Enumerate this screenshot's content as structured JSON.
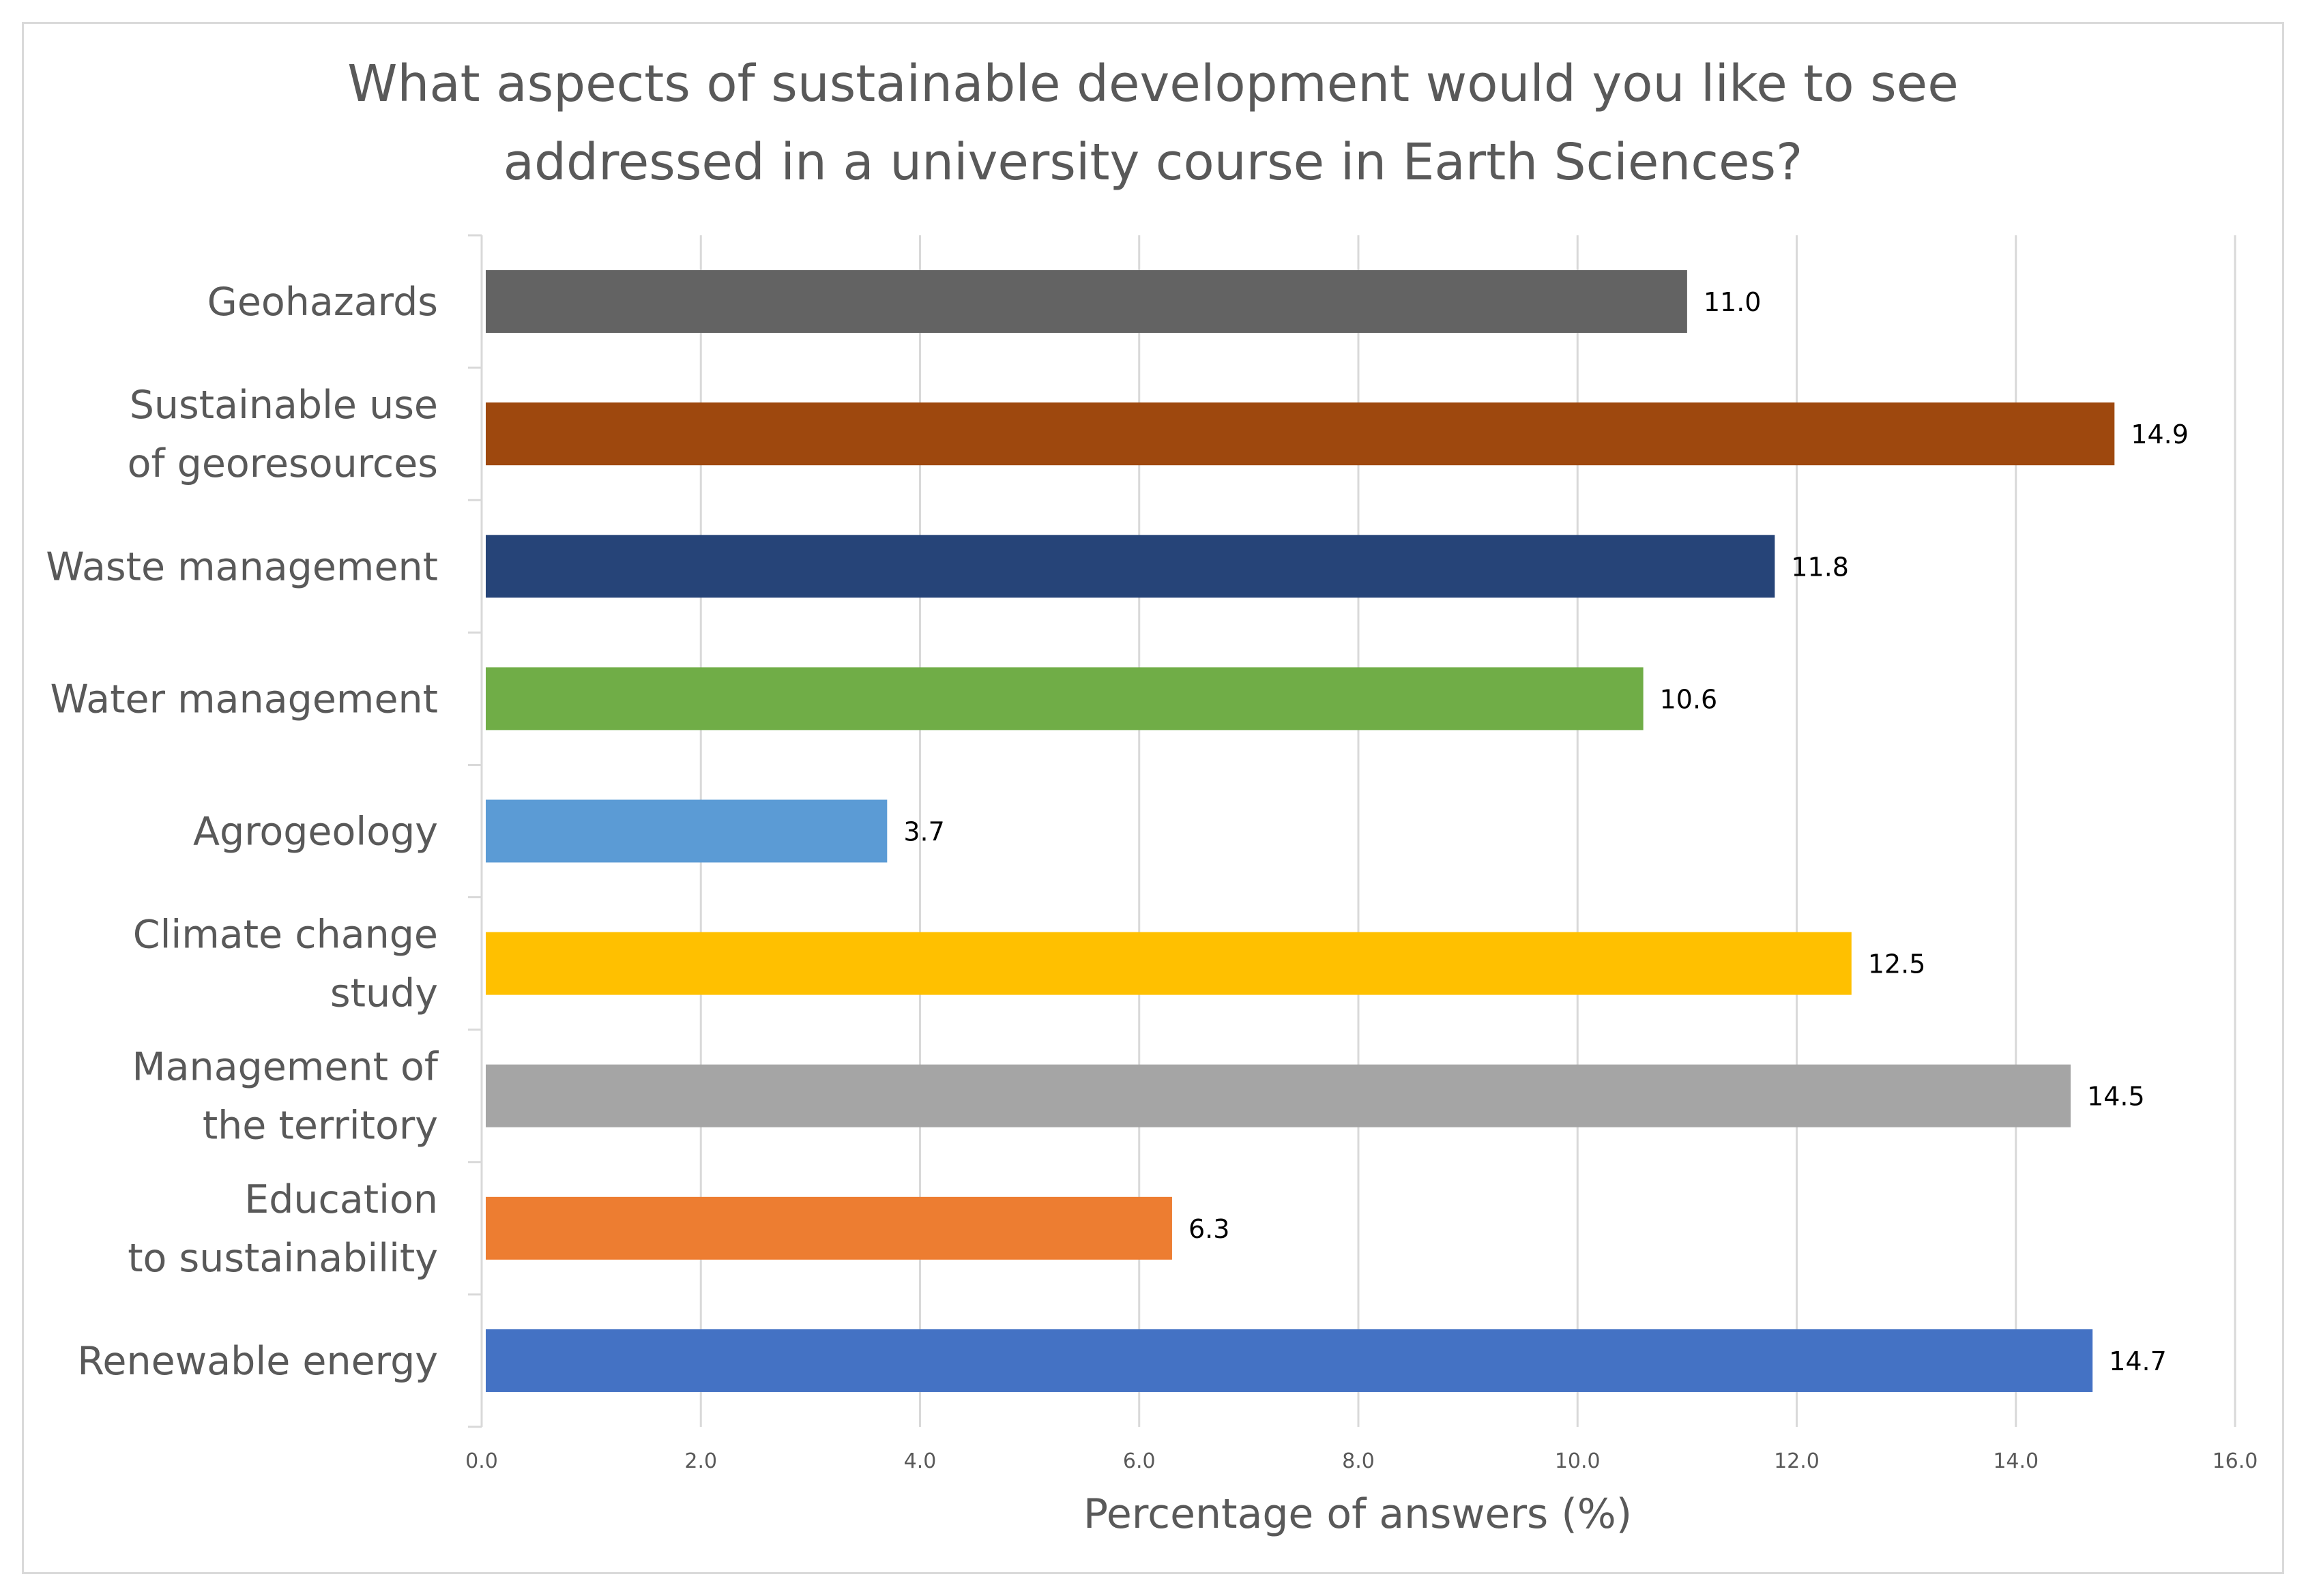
{
  "chart_data": {
    "type": "bar",
    "orientation": "horizontal",
    "title_lines": [
      "What aspects of sustainable development would you like to see",
      "addressed in a university course in Earth Sciences?"
    ],
    "xlabel": "Percentage of answers (%)",
    "ylabel": "",
    "xlim": [
      0,
      16
    ],
    "x_ticks": [
      "0.0",
      "2.0",
      "4.0",
      "6.0",
      "8.0",
      "10.0",
      "12.0",
      "14.0",
      "16.0"
    ],
    "grid": true,
    "legend": "none",
    "categories": [
      [
        "Geohazards"
      ],
      [
        "Sustainable use",
        "of georesources"
      ],
      [
        "Waste management"
      ],
      [
        "Water management"
      ],
      [
        "Agrogeology"
      ],
      [
        "Climate change",
        "study"
      ],
      [
        "Management of",
        "the territory"
      ],
      [
        "Education",
        "to sustainability"
      ],
      [
        "Renewable energy"
      ]
    ],
    "values": [
      11.0,
      14.9,
      11.8,
      10.6,
      3.7,
      12.5,
      14.5,
      6.3,
      14.7
    ],
    "value_labels": [
      "11.0",
      "14.9",
      "11.8",
      "10.6",
      "3.7",
      "12.5",
      "14.5",
      "6.3",
      "14.7"
    ],
    "colors": [
      "#636363",
      "#9e480e",
      "#264478",
      "#70ad47",
      "#5b9bd5",
      "#ffc000",
      "#a5a5a5",
      "#ed7d31",
      "#4472c4"
    ]
  }
}
